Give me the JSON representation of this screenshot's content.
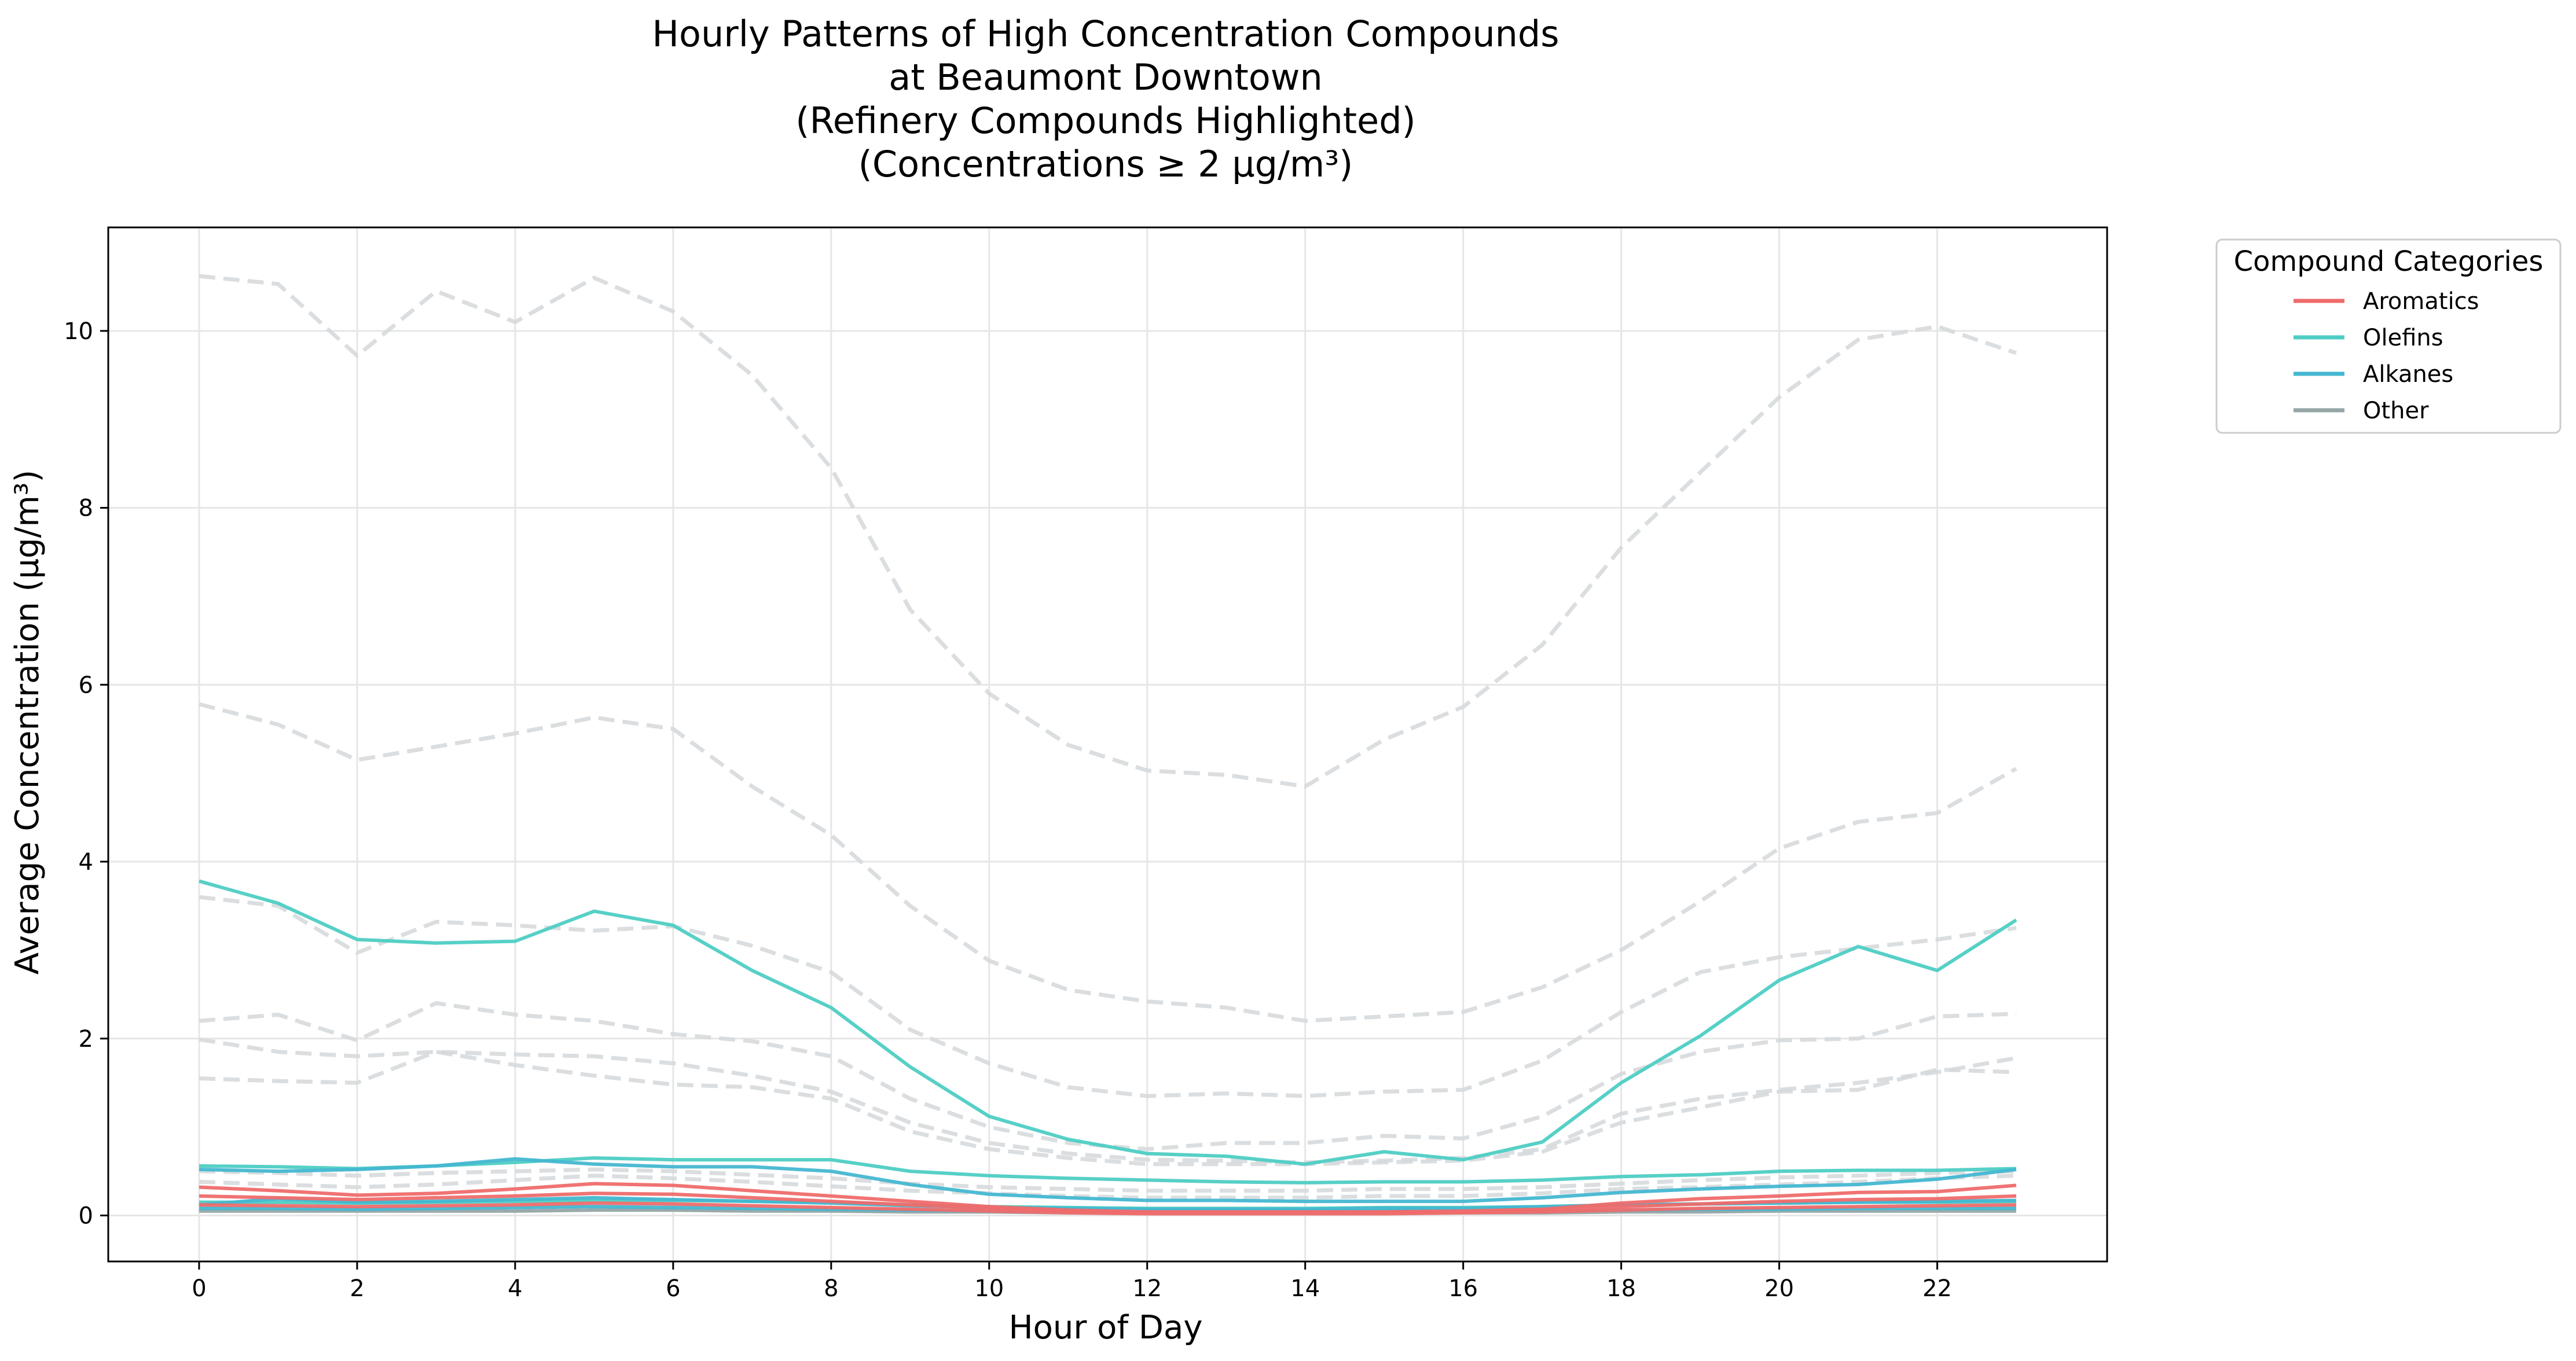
{
  "chart_data": {
    "type": "line",
    "title": [
      "Hourly Patterns of High Concentration Compounds",
      "at Beaumont Downtown",
      "(Refinery Compounds Highlighted)",
      "(Concentrations ≥ 2 µg/m³)"
    ],
    "xlabel": "Hour of Day",
    "ylabel": "Average Concentration (µg/m³)",
    "xlim": [
      -1.15,
      24.15
    ],
    "ylim": [
      -0.52,
      11.17
    ],
    "xticks": [
      0,
      2,
      4,
      6,
      8,
      10,
      12,
      14,
      16,
      18,
      20,
      22
    ],
    "yticks": [
      0,
      2,
      4,
      6,
      8,
      10
    ],
    "grid": true,
    "x": [
      0,
      1,
      2,
      3,
      4,
      5,
      6,
      7,
      8,
      9,
      10,
      11,
      12,
      13,
      14,
      15,
      16,
      17,
      18,
      19,
      20,
      21,
      22,
      23
    ],
    "legend": {
      "title": "Compound Categories",
      "placement": "outside-right",
      "entries": [
        {
          "label": "Aromatics",
          "color": "#ef6b6b"
        },
        {
          "label": "Olefins",
          "color": "#4ecdc4"
        },
        {
          "label": "Alkanes",
          "color": "#45b7d1"
        },
        {
          "label": "Other",
          "color": "#95a5a6"
        }
      ]
    },
    "series": [
      {
        "category": "Other",
        "style": "dashed",
        "values": [
          10.62,
          10.53,
          9.72,
          10.45,
          10.1,
          10.6,
          10.22,
          9.5,
          8.45,
          6.85,
          5.9,
          5.32,
          5.03,
          4.98,
          4.85,
          5.38,
          5.75,
          6.45,
          7.55,
          8.4,
          9.25,
          9.9,
          10.05,
          9.75
        ]
      },
      {
        "category": "Other",
        "style": "dashed",
        "values": [
          5.78,
          5.55,
          5.15,
          5.3,
          5.45,
          5.63,
          5.5,
          4.85,
          4.3,
          3.5,
          2.88,
          2.55,
          2.42,
          2.35,
          2.2,
          2.25,
          2.3,
          2.58,
          3.0,
          3.55,
          4.15,
          4.45,
          4.55,
          5.05
        ]
      },
      {
        "category": "Other",
        "style": "dashed",
        "values": [
          3.6,
          3.5,
          2.97,
          3.32,
          3.28,
          3.22,
          3.27,
          3.05,
          2.75,
          2.1,
          1.72,
          1.45,
          1.35,
          1.38,
          1.35,
          1.4,
          1.42,
          1.75,
          2.3,
          2.75,
          2.92,
          3.02,
          3.12,
          3.25
        ]
      },
      {
        "category": "Other",
        "style": "dashed",
        "values": [
          2.2,
          2.27,
          1.98,
          2.4,
          2.27,
          2.2,
          2.05,
          1.97,
          1.8,
          1.32,
          1.0,
          0.82,
          0.75,
          0.82,
          0.82,
          0.9,
          0.87,
          1.12,
          1.6,
          1.85,
          1.98,
          2.0,
          2.25,
          2.28
        ]
      },
      {
        "category": "Other",
        "style": "dashed",
        "values": [
          1.99,
          1.85,
          1.8,
          1.85,
          1.82,
          1.8,
          1.72,
          1.58,
          1.4,
          1.05,
          0.82,
          0.7,
          0.63,
          0.62,
          0.6,
          0.62,
          0.65,
          0.75,
          1.15,
          1.32,
          1.42,
          1.5,
          1.62,
          1.78
        ]
      },
      {
        "category": "Other",
        "style": "dashed",
        "values": [
          1.55,
          1.52,
          1.5,
          1.85,
          1.7,
          1.58,
          1.48,
          1.45,
          1.32,
          0.95,
          0.75,
          0.65,
          0.58,
          0.58,
          0.58,
          0.6,
          0.62,
          0.72,
          1.05,
          1.22,
          1.4,
          1.42,
          1.65,
          1.62
        ]
      },
      {
        "category": "Other",
        "style": "dashed",
        "values": [
          0.38,
          0.35,
          0.32,
          0.35,
          0.4,
          0.45,
          0.42,
          0.38,
          0.33,
          0.28,
          0.25,
          0.22,
          0.2,
          0.2,
          0.2,
          0.22,
          0.22,
          0.25,
          0.3,
          0.32,
          0.35,
          0.38,
          0.42,
          0.45
        ]
      },
      {
        "category": "Other",
        "style": "dashed",
        "values": [
          0.5,
          0.48,
          0.45,
          0.48,
          0.5,
          0.52,
          0.5,
          0.46,
          0.42,
          0.36,
          0.32,
          0.3,
          0.28,
          0.28,
          0.28,
          0.3,
          0.3,
          0.32,
          0.36,
          0.4,
          0.43,
          0.45,
          0.48,
          0.5
        ]
      },
      {
        "category": "Other",
        "style": "dashed",
        "values": [
          0.08,
          0.08,
          0.07,
          0.08,
          0.08,
          0.09,
          0.09,
          0.08,
          0.07,
          0.06,
          0.05,
          0.05,
          0.04,
          0.04,
          0.04,
          0.05,
          0.05,
          0.05,
          0.06,
          0.07,
          0.07,
          0.08,
          0.08,
          0.08
        ]
      },
      {
        "category": "Other",
        "style": "solid",
        "values": [
          0.05,
          0.05,
          0.05,
          0.05,
          0.05,
          0.06,
          0.06,
          0.05,
          0.05,
          0.04,
          0.04,
          0.03,
          0.03,
          0.03,
          0.03,
          0.03,
          0.03,
          0.03,
          0.04,
          0.04,
          0.05,
          0.05,
          0.05,
          0.05
        ]
      },
      {
        "category": "Olefins",
        "style": "solid",
        "values": [
          3.78,
          3.53,
          3.12,
          3.08,
          3.1,
          3.44,
          3.28,
          2.77,
          2.35,
          1.68,
          1.12,
          0.86,
          0.7,
          0.67,
          0.58,
          0.72,
          0.63,
          0.83,
          1.5,
          2.03,
          2.66,
          3.04,
          2.77,
          3.34
        ]
      },
      {
        "category": "Olefins",
        "style": "solid",
        "values": [
          0.56,
          0.55,
          0.53,
          0.56,
          0.6,
          0.65,
          0.63,
          0.63,
          0.63,
          0.5,
          0.45,
          0.42,
          0.4,
          0.38,
          0.37,
          0.38,
          0.38,
          0.4,
          0.44,
          0.46,
          0.5,
          0.51,
          0.51,
          0.53
        ]
      },
      {
        "category": "Olefins",
        "style": "solid",
        "values": [
          0.15,
          0.15,
          0.14,
          0.15,
          0.16,
          0.17,
          0.17,
          0.16,
          0.15,
          0.12,
          0.1,
          0.09,
          0.08,
          0.08,
          0.08,
          0.09,
          0.09,
          0.1,
          0.12,
          0.13,
          0.14,
          0.15,
          0.15,
          0.16
        ]
      },
      {
        "category": "Alkanes",
        "style": "solid",
        "values": [
          0.52,
          0.5,
          0.52,
          0.56,
          0.64,
          0.58,
          0.55,
          0.55,
          0.5,
          0.35,
          0.24,
          0.2,
          0.17,
          0.17,
          0.16,
          0.16,
          0.16,
          0.2,
          0.26,
          0.3,
          0.33,
          0.35,
          0.41,
          0.52
        ]
      },
      {
        "category": "Alkanes",
        "style": "solid",
        "values": [
          0.12,
          0.19,
          0.15,
          0.16,
          0.18,
          0.2,
          0.18,
          0.16,
          0.14,
          0.11,
          0.09,
          0.08,
          0.07,
          0.07,
          0.07,
          0.08,
          0.08,
          0.1,
          0.12,
          0.13,
          0.14,
          0.15,
          0.16,
          0.17
        ]
      },
      {
        "category": "Alkanes",
        "style": "solid",
        "values": [
          0.08,
          0.08,
          0.07,
          0.08,
          0.09,
          0.1,
          0.09,
          0.08,
          0.07,
          0.06,
          0.05,
          0.05,
          0.04,
          0.04,
          0.04,
          0.05,
          0.05,
          0.05,
          0.06,
          0.07,
          0.07,
          0.08,
          0.08,
          0.08
        ]
      },
      {
        "category": "Aromatics",
        "style": "solid",
        "values": [
          0.32,
          0.28,
          0.23,
          0.25,
          0.3,
          0.36,
          0.34,
          0.28,
          0.22,
          0.16,
          0.1,
          0.06,
          0.04,
          0.04,
          0.04,
          0.04,
          0.05,
          0.07,
          0.14,
          0.19,
          0.22,
          0.26,
          0.27,
          0.34
        ]
      },
      {
        "category": "Aromatics",
        "style": "solid",
        "values": [
          0.22,
          0.2,
          0.18,
          0.2,
          0.22,
          0.25,
          0.24,
          0.2,
          0.16,
          0.12,
          0.08,
          0.05,
          0.04,
          0.04,
          0.04,
          0.04,
          0.04,
          0.06,
          0.1,
          0.13,
          0.16,
          0.18,
          0.19,
          0.22
        ]
      },
      {
        "category": "Aromatics",
        "style": "solid",
        "values": [
          0.12,
          0.11,
          0.1,
          0.11,
          0.12,
          0.14,
          0.13,
          0.11,
          0.09,
          0.07,
          0.05,
          0.03,
          0.02,
          0.02,
          0.02,
          0.02,
          0.03,
          0.04,
          0.06,
          0.08,
          0.09,
          0.1,
          0.11,
          0.12
        ]
      }
    ]
  }
}
